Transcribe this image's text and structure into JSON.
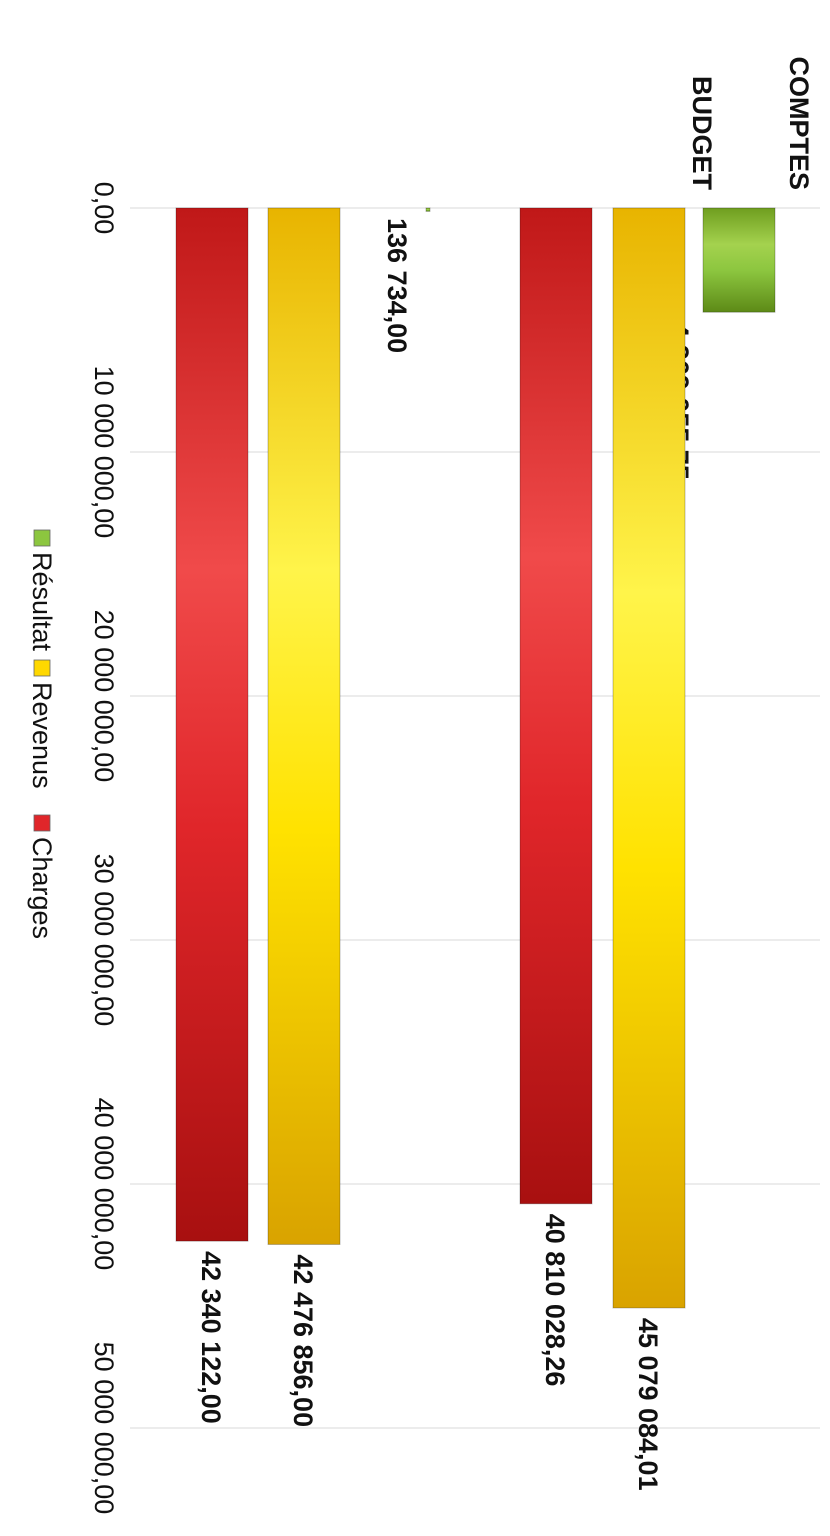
{
  "chart_data": {
    "type": "bar",
    "orientation": "horizontal",
    "categories": [
      "COMPTES",
      "BUDGET"
    ],
    "series": [
      {
        "name": "Résultat",
        "color": "#8cc63f",
        "values": [
          4269055.75,
          136734.0
        ],
        "labels": [
          "4 269 055,75",
          "136 734,00"
        ]
      },
      {
        "name": "Revenus",
        "color": "#ffd800",
        "values": [
          45079084.01,
          42476856.0
        ],
        "labels": [
          "45 079 084,01",
          "42 476 856,00"
        ]
      },
      {
        "name": "Charges",
        "color": "#e0262a",
        "values": [
          40810028.26,
          42340122.0
        ],
        "labels": [
          "40 810 028,26",
          "42 340 122,00"
        ]
      }
    ],
    "value_axis": {
      "min": 0,
      "max": 50000000,
      "ticks": [
        0,
        10000000,
        20000000,
        30000000,
        40000000,
        50000000
      ],
      "tick_labels": [
        "0,00",
        "10 000 000,00",
        "20 000 000,00",
        "30 000 000,00",
        "40 000 000,00",
        "50 000 000,00"
      ]
    },
    "grid": true,
    "legend_position": "bottom",
    "title": "",
    "xlabel": "",
    "ylabel": ""
  }
}
